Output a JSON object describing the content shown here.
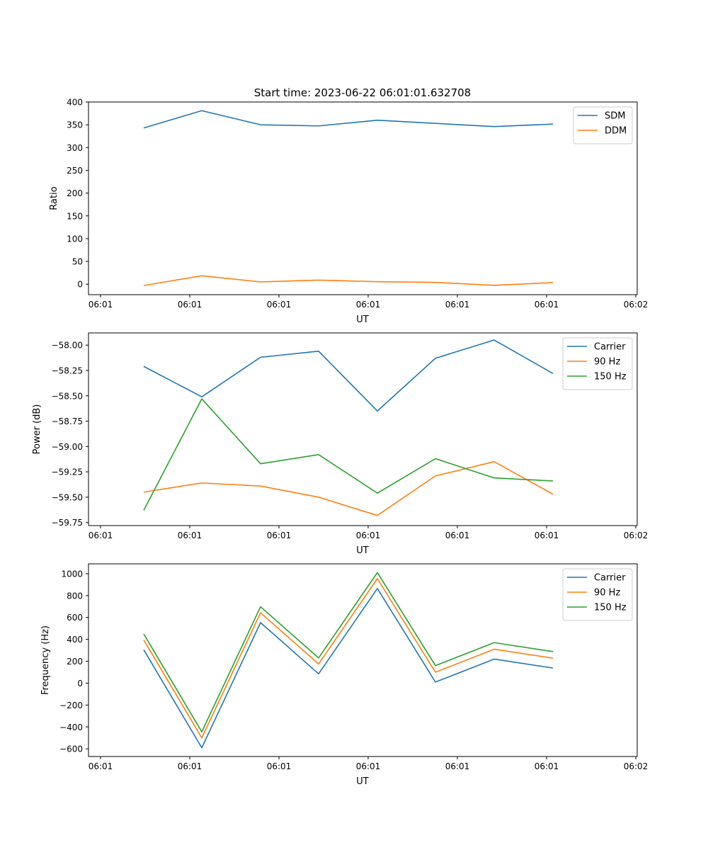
{
  "title": "Start time: 2023-06-22 06:01:01.632708",
  "colors": {
    "blue": "#1f77b4",
    "orange": "#ff7f0e",
    "green": "#2ca02c"
  },
  "chart_data": [
    {
      "type": "line",
      "xlabel": "UT",
      "ylabel": "Ratio",
      "x_tick_labels": [
        "06:01",
        "06:01",
        "06:01",
        "06:01",
        "06:01",
        "06:01",
        "06:02"
      ],
      "y_tick_labels": [
        "0",
        "50",
        "100",
        "150",
        "200",
        "250",
        "300",
        "350",
        "400"
      ],
      "ylim": [
        -23,
        400
      ],
      "grid": false,
      "legend_position": "top-right",
      "series": [
        {
          "name": "SDM",
          "color": "#1f77b4",
          "values": [
            343,
            381,
            350,
            347.5,
            360,
            353,
            346,
            351.5
          ]
        },
        {
          "name": "DDM",
          "color": "#ff7f0e",
          "values": [
            -3,
            18.5,
            5,
            9,
            5.5,
            4,
            -2.5,
            3.5
          ]
        }
      ]
    },
    {
      "type": "line",
      "xlabel": "UT",
      "ylabel": "Power (dB)",
      "x_tick_labels": [
        "06:01",
        "06:01",
        "06:01",
        "06:01",
        "06:01",
        "06:01",
        "06:02"
      ],
      "y_tick_labels": [
        "−59.75",
        "−59.50",
        "−59.25",
        "−59.00",
        "−58.75",
        "−58.50",
        "−58.25",
        "−58.00"
      ],
      "ylim": [
        -59.78,
        -57.88
      ],
      "grid": false,
      "legend_position": "top-right",
      "series": [
        {
          "name": "Carrier",
          "color": "#1f77b4",
          "values": [
            -58.21,
            -58.51,
            -58.12,
            -58.06,
            -58.65,
            -58.13,
            -57.95,
            -58.28
          ]
        },
        {
          "name": "90 Hz",
          "color": "#ff7f0e",
          "values": [
            -59.45,
            -59.36,
            -59.39,
            -59.5,
            -59.68,
            -59.29,
            -59.15,
            -59.47
          ]
        },
        {
          "name": "150 Hz",
          "color": "#2ca02c",
          "values": [
            -59.63,
            -58.53,
            -59.17,
            -59.08,
            -59.46,
            -59.12,
            -59.31,
            -59.34
          ]
        }
      ]
    },
    {
      "type": "line",
      "xlabel": "UT",
      "ylabel": "Frequency (Hz)",
      "x_tick_labels": [
        "06:01",
        "06:01",
        "06:01",
        "06:01",
        "06:01",
        "06:01",
        "06:02"
      ],
      "y_tick_labels": [
        "−600",
        "−400",
        "−200",
        "0",
        "200",
        "400",
        "600",
        "800",
        "1000"
      ],
      "ylim": [
        -670,
        1090
      ],
      "grid": false,
      "legend_position": "top-right",
      "series": [
        {
          "name": "Carrier",
          "color": "#1f77b4",
          "values": [
            305,
            -590,
            553,
            85,
            865,
            10,
            220,
            138
          ]
        },
        {
          "name": "90 Hz",
          "color": "#ff7f0e",
          "values": [
            395,
            -500,
            643,
            175,
            955,
            100,
            310,
            228
          ]
        },
        {
          "name": "150 Hz",
          "color": "#2ca02c",
          "values": [
            450,
            -445,
            698,
            230,
            1010,
            160,
            370,
            288
          ]
        }
      ]
    }
  ]
}
